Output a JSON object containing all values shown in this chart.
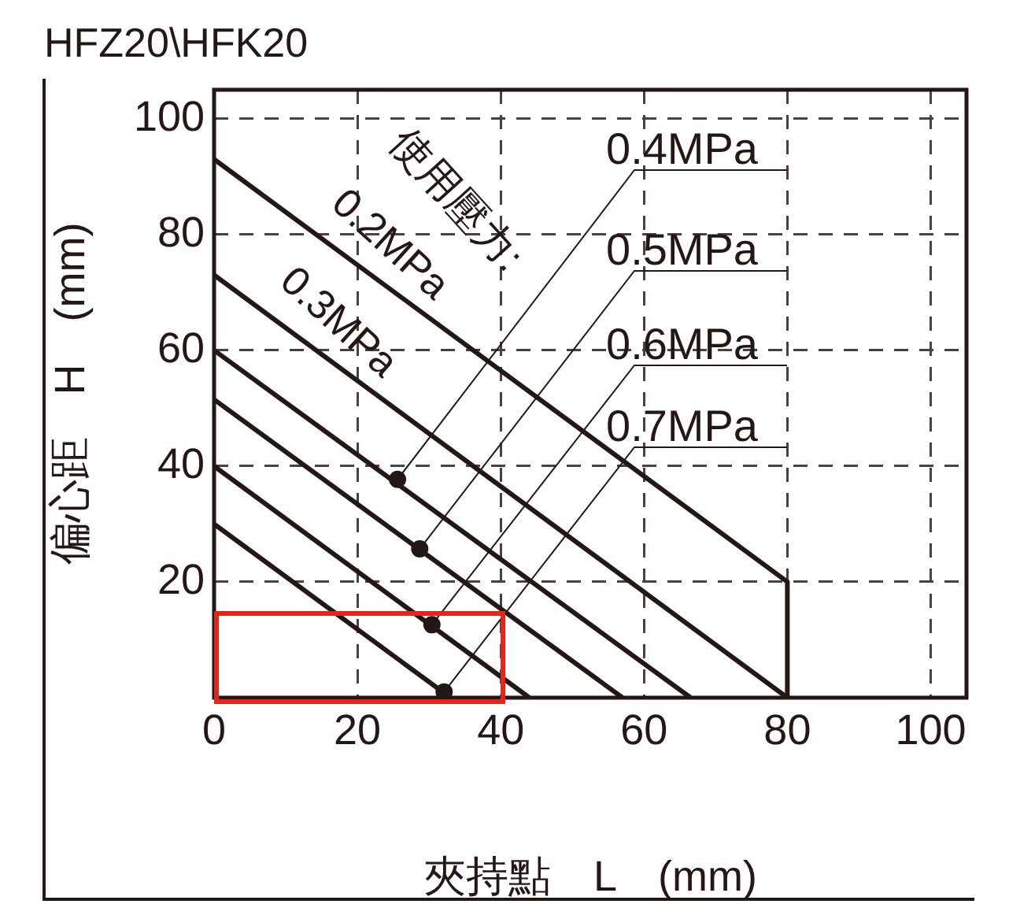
{
  "chart_data": {
    "type": "line",
    "title": "HFZ20\\HFK20",
    "xlabel": "夾持點　L　(mm)",
    "ylabel": "偏心距　H　(mm)",
    "xlim": [
      0,
      105
    ],
    "ylim": [
      0,
      105
    ],
    "xticks": [
      0,
      20,
      40,
      60,
      80,
      100
    ],
    "yticks": [
      {
        "value": 0,
        "label": null
      },
      20,
      40,
      60,
      80,
      100
    ],
    "grid": true,
    "line_style": "solid",
    "series": [
      {
        "name": "0.2MPa",
        "color": "#231815",
        "x": [
          0,
          80,
          80
        ],
        "values": [
          93,
          20,
          0
        ]
      },
      {
        "name": "0.3MPa",
        "color": "#231815",
        "x": [
          0,
          80
        ],
        "values": [
          73,
          0
        ]
      },
      {
        "color": "#231815",
        "x": [
          0,
          66.5
        ],
        "values": [
          60,
          0
        ]
      },
      {
        "color": "#231815",
        "x": [
          0,
          57
        ],
        "values": [
          51.5,
          0
        ]
      },
      {
        "color": "#231815",
        "x": [
          0,
          44
        ],
        "values": [
          40,
          0
        ]
      },
      {
        "color": "#231815",
        "x": [
          0,
          33
        ],
        "values": [
          30,
          0
        ]
      },
      {
        "type": "scatter",
        "color": "#231815",
        "x": [
          25.6,
          28.7,
          30.4,
          32.1
        ],
        "values": [
          37.7,
          25.7,
          12.6,
          1
        ]
      }
    ],
    "annotations": [
      "使用壓力:",
      {
        "text": "0.4MPa",
        "x": 25.6,
        "y": 37.7
      },
      {
        "text": "0.5MPa",
        "x": 28.7,
        "y": 25.7
      },
      {
        "text": "0.6MPa",
        "x": 30.4,
        "y": 12.6
      },
      {
        "text": "0.7MPa",
        "x": 32.1,
        "y": 1
      }
    ]
  }
}
